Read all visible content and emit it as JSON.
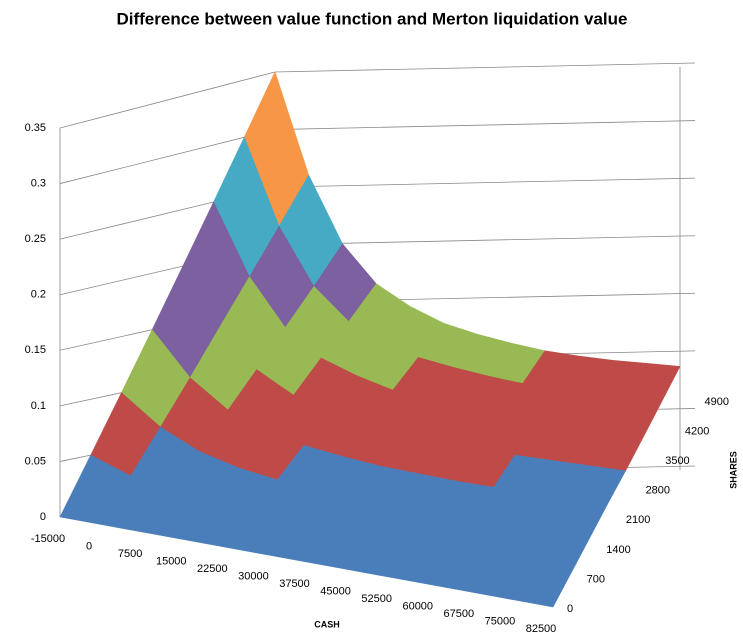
{
  "chart_data": {
    "type": "surface",
    "title": "Difference between value function and Merton liquidation value",
    "xlabel": "CASH",
    "ylabel": "SHARES",
    "x": [
      -15000,
      0,
      7500,
      15000,
      22500,
      30000,
      37500,
      45000,
      52500,
      60000,
      67500,
      75000,
      82500
    ],
    "y": [
      0,
      700,
      1400,
      2100,
      2800,
      3500,
      4200,
      4900
    ],
    "zlim": [
      0,
      0.35
    ],
    "zticks": [
      0,
      0.05,
      0.1,
      0.15,
      0.2,
      0.25,
      0.3,
      0.35
    ],
    "band_colors": [
      "#4a7ebb",
      "#be4b48",
      "#98b954",
      "#7d60a0",
      "#46aac5",
      "#f79646",
      "#95b3d7"
    ],
    "values": [
      [
        0,
        0,
        0,
        0,
        0,
        0,
        0,
        0,
        0,
        0,
        0,
        0,
        0
      ],
      [
        0.05,
        0.037,
        0.029,
        0.024,
        0.021,
        0.019,
        0.017,
        0.016,
        0.015,
        0.014,
        0.014,
        0.013,
        0.013
      ],
      [
        0.1,
        0.074,
        0.057,
        0.047,
        0.041,
        0.037,
        0.034,
        0.032,
        0.03,
        0.029,
        0.027,
        0.027,
        0.026
      ],
      [
        0.15,
        0.111,
        0.086,
        0.071,
        0.062,
        0.056,
        0.051,
        0.048,
        0.045,
        0.043,
        0.041,
        0.04,
        0.039
      ],
      [
        0.2,
        0.149,
        0.114,
        0.094,
        0.083,
        0.074,
        0.069,
        0.064,
        0.06,
        0.057,
        0.055,
        0.053,
        0.051
      ],
      [
        0.25,
        0.186,
        0.143,
        0.118,
        0.104,
        0.093,
        0.086,
        0.08,
        0.075,
        0.071,
        0.069,
        0.066,
        0.064
      ],
      [
        0.3,
        0.223,
        0.171,
        0.141,
        0.124,
        0.111,
        0.103,
        0.096,
        0.09,
        0.086,
        0.082,
        0.08,
        0.077
      ],
      [
        0.35,
        0.26,
        0.2,
        0.165,
        0.145,
        0.13,
        0.12,
        0.112,
        0.105,
        0.1,
        0.096,
        0.093,
        0.09
      ]
    ]
  }
}
